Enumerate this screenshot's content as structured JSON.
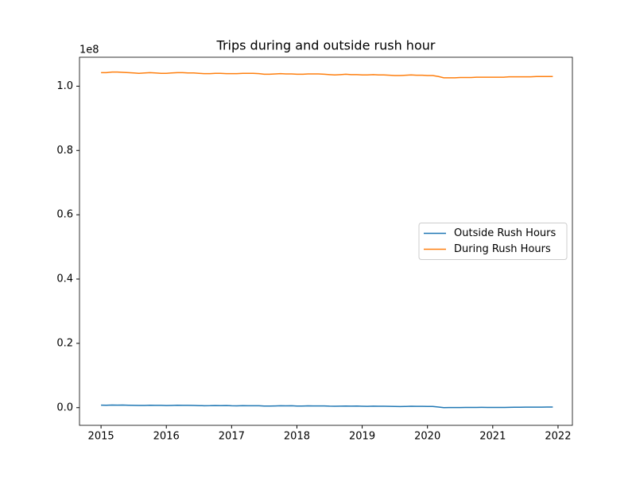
{
  "chart_data": {
    "type": "line",
    "title": "Trips during and outside rush hour",
    "y_offset_label": "1e8",
    "x": [
      2015,
      2015.08,
      2015.17,
      2015.25,
      2015.33,
      2015.42,
      2015.5,
      2015.58,
      2015.67,
      2015.75,
      2015.83,
      2015.92,
      2016,
      2016.08,
      2016.17,
      2016.25,
      2016.33,
      2016.42,
      2016.5,
      2016.58,
      2016.67,
      2016.75,
      2016.83,
      2016.92,
      2017,
      2017.08,
      2017.17,
      2017.25,
      2017.33,
      2017.42,
      2017.5,
      2017.58,
      2017.67,
      2017.75,
      2017.83,
      2017.92,
      2018,
      2018.08,
      2018.17,
      2018.25,
      2018.33,
      2018.42,
      2018.5,
      2018.58,
      2018.67,
      2018.75,
      2018.83,
      2018.92,
      2019,
      2019.08,
      2019.17,
      2019.25,
      2019.33,
      2019.42,
      2019.5,
      2019.58,
      2019.67,
      2019.75,
      2019.83,
      2019.92,
      2020,
      2020.08,
      2020.17,
      2020.25,
      2020.33,
      2020.42,
      2020.5,
      2020.58,
      2020.67,
      2020.75,
      2020.83,
      2020.92,
      2021,
      2021.08,
      2021.17,
      2021.25,
      2021.33,
      2021.42,
      2021.5,
      2021.58,
      2021.67,
      2021.75,
      2021.83,
      2021.92
    ],
    "series": [
      {
        "name": "Outside Rush Hours",
        "color": "#1f77b4",
        "values": [
          0.0078,
          0.0076,
          0.0081,
          0.0079,
          0.008,
          0.0075,
          0.0071,
          0.0068,
          0.0068,
          0.0075,
          0.007,
          0.0071,
          0.0066,
          0.0069,
          0.0073,
          0.0072,
          0.0071,
          0.0068,
          0.0063,
          0.006,
          0.0061,
          0.0066,
          0.0061,
          0.0065,
          0.0058,
          0.0055,
          0.0061,
          0.006,
          0.006,
          0.0058,
          0.0051,
          0.0049,
          0.0053,
          0.0058,
          0.0055,
          0.0058,
          0.0051,
          0.005,
          0.0055,
          0.0054,
          0.0054,
          0.0052,
          0.0046,
          0.0045,
          0.0047,
          0.0051,
          0.0048,
          0.0049,
          0.0044,
          0.0041,
          0.0046,
          0.0044,
          0.0044,
          0.0041,
          0.0037,
          0.0035,
          0.0037,
          0.0042,
          0.004,
          0.004,
          0.0036,
          0.0036,
          0.0018,
          0.0001,
          0.0002,
          0.0003,
          0.0004,
          0.0005,
          0.0006,
          0.0008,
          0.0009,
          0.0008,
          0.0008,
          0.0007,
          0.0007,
          0.001,
          0.0012,
          0.0014,
          0.0016,
          0.0016,
          0.0016,
          0.0017,
          0.002,
          0.0019
        ]
      },
      {
        "name": "During Rush Hours",
        "color": "#ff7f0e",
        "values": [
          1.042,
          1.042,
          1.044,
          1.044,
          1.043,
          1.042,
          1.041,
          1.04,
          1.041,
          1.042,
          1.041,
          1.04,
          1.04,
          1.041,
          1.042,
          1.042,
          1.041,
          1.041,
          1.04,
          1.039,
          1.039,
          1.04,
          1.04,
          1.039,
          1.039,
          1.039,
          1.04,
          1.04,
          1.04,
          1.039,
          1.037,
          1.037,
          1.038,
          1.039,
          1.038,
          1.038,
          1.037,
          1.037,
          1.038,
          1.038,
          1.038,
          1.037,
          1.036,
          1.035,
          1.036,
          1.037,
          1.036,
          1.036,
          1.035,
          1.035,
          1.036,
          1.035,
          1.035,
          1.034,
          1.033,
          1.033,
          1.034,
          1.035,
          1.034,
          1.034,
          1.033,
          1.033,
          1.03,
          1.026,
          1.026,
          1.026,
          1.027,
          1.027,
          1.027,
          1.028,
          1.028,
          1.028,
          1.028,
          1.028,
          1.028,
          1.029,
          1.029,
          1.029,
          1.029,
          1.029,
          1.03,
          1.03,
          1.03,
          1.03
        ]
      }
    ],
    "xlim": [
      2014.67,
      2022.22
    ],
    "xticks": [
      2015,
      2016,
      2017,
      2018,
      2019,
      2020,
      2021,
      2022
    ],
    "ylim": [
      -0.055,
      1.09
    ],
    "yticks": [
      {
        "value": 0,
        "label": "0.0"
      },
      0.2,
      0.4,
      0.6,
      0.8,
      {
        "value": 1,
        "label": "1.0"
      }
    ],
    "grid": false,
    "legend": "center right"
  }
}
